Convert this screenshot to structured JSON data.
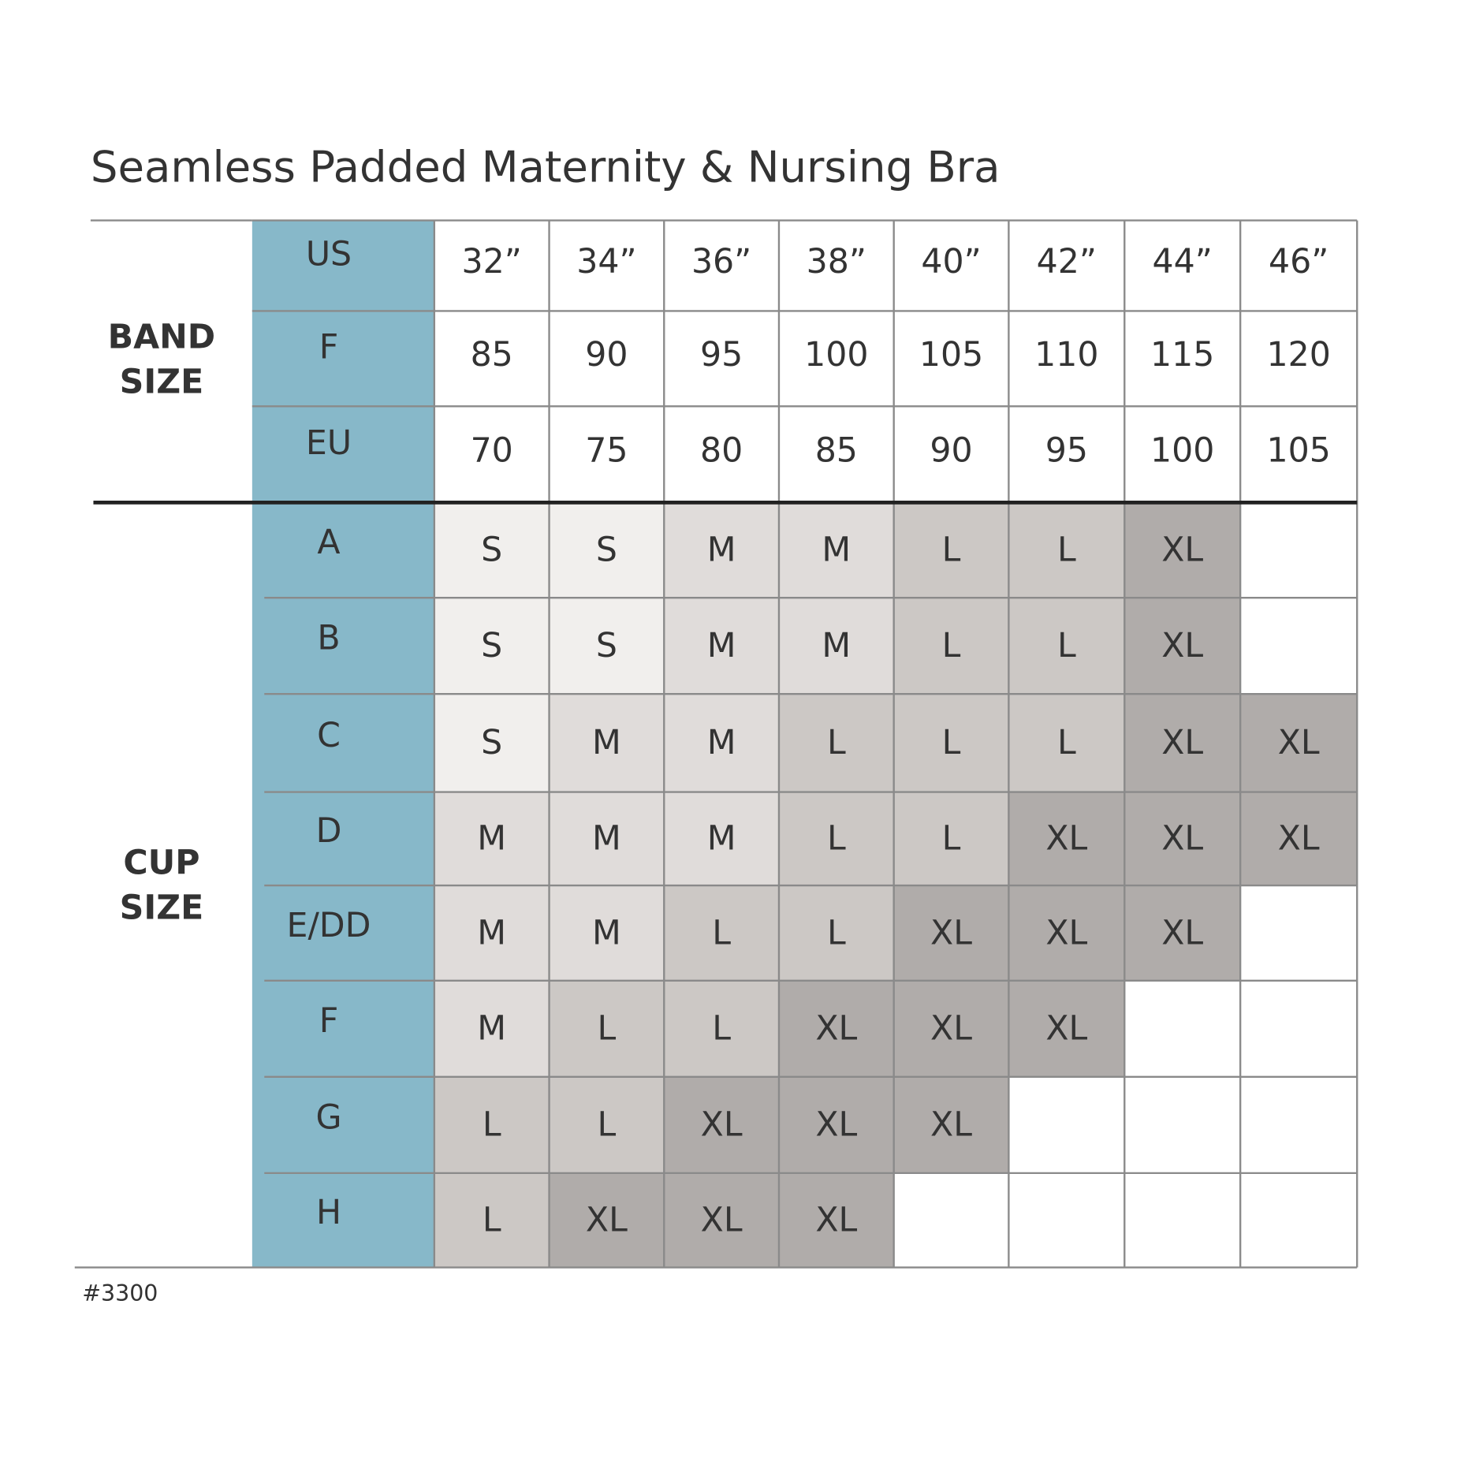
{
  "header": {
    "title": "Seamless Padded Maternity & Nursing Bra"
  },
  "band_size": {
    "label": [
      "BAND",
      "SIZE"
    ],
    "rows": [
      {
        "label": "US",
        "values": [
          "32”",
          "34”",
          "36”",
          "38”",
          "40”",
          "42”",
          "44”",
          "46”"
        ]
      },
      {
        "label": "F",
        "values": [
          85,
          90,
          95,
          100,
          105,
          110,
          115,
          120
        ]
      },
      {
        "label": "EU",
        "values": [
          70,
          75,
          80,
          85,
          90,
          95,
          100,
          105
        ]
      }
    ]
  },
  "cup_size": {
    "label": [
      "CUP",
      "SIZE"
    ],
    "rows": [
      {
        "label": "A",
        "sizes": [
          "S",
          "S",
          "M",
          "M",
          "L",
          "L",
          "XL",
          null
        ]
      },
      {
        "label": "B",
        "sizes": [
          "S",
          "S",
          "M",
          "M",
          "L",
          "L",
          "XL",
          null
        ]
      },
      {
        "label": "C",
        "sizes": [
          "S",
          "M",
          "M",
          "L",
          "L",
          "L",
          "XL",
          "XL"
        ]
      },
      {
        "label": "D",
        "sizes": [
          "M",
          "M",
          "M",
          "L",
          "L",
          "XL",
          "XL",
          "XL"
        ]
      },
      {
        "label": "E/DD",
        "sizes": [
          "M",
          "M",
          "L",
          "L",
          "XL",
          "XL",
          "XL",
          null
        ]
      },
      {
        "label": "F",
        "sizes": [
          "M",
          "L",
          "L",
          "XL",
          "XL",
          "XL",
          null,
          null
        ]
      },
      {
        "label": "G",
        "sizes": [
          "L",
          "L",
          "XL",
          "XL",
          "XL",
          null,
          null,
          null
        ]
      },
      {
        "label": "H",
        "sizes": [
          "L",
          "XL",
          "XL",
          "XL",
          null,
          null,
          null,
          null
        ]
      }
    ]
  },
  "size_colors": {
    "S": "#f1efed",
    "M": "#e0dcda",
    "L": "#ccc8c5",
    "XL": "#b0acaa"
  },
  "label_column_color": "#87b8c9",
  "footer": {
    "code": "#3300"
  }
}
